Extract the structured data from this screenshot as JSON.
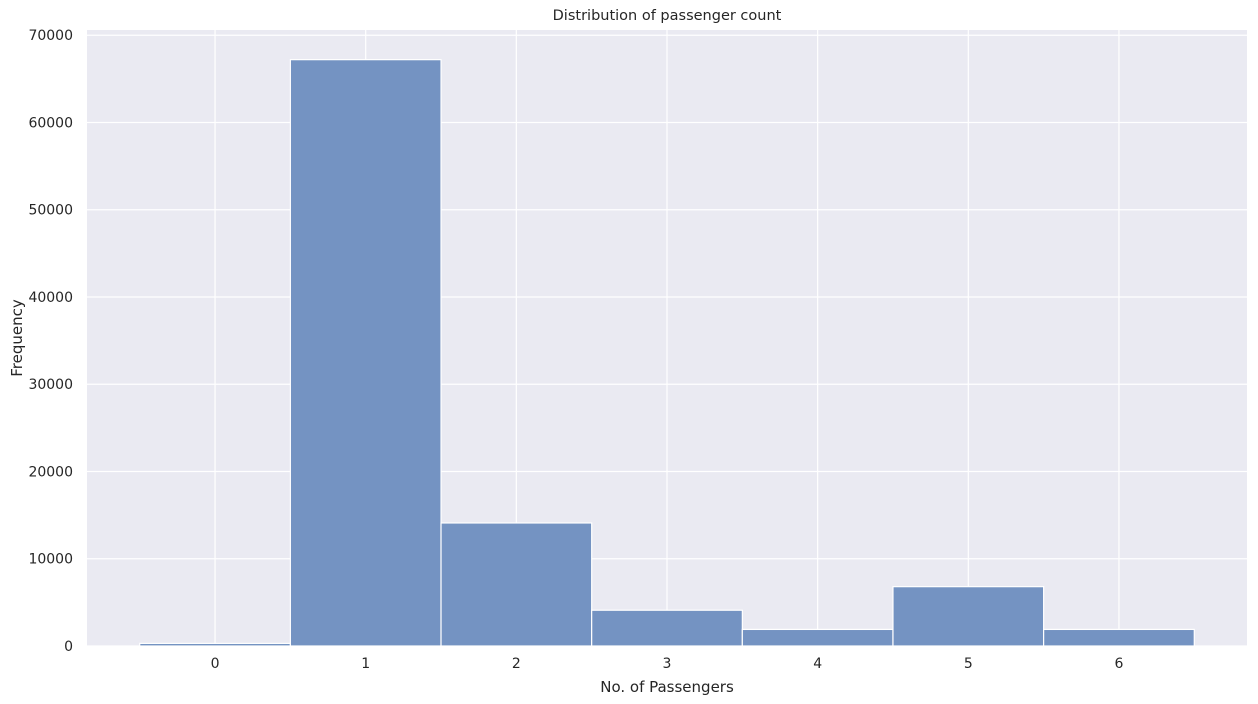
{
  "chart_data": {
    "type": "bar",
    "title": "Distribution of passenger count",
    "xlabel": "No. of Passengers",
    "ylabel": "Frequency",
    "categories": [
      "0",
      "1",
      "2",
      "3",
      "4",
      "5",
      "6"
    ],
    "x_values": [
      0,
      1,
      2,
      3,
      4,
      5,
      6
    ],
    "values": [
      300,
      67200,
      14100,
      4100,
      1900,
      6800,
      1900
    ],
    "xlim": [
      -0.85,
      6.85
    ],
    "ylim": [
      0,
      70600
    ],
    "x_ticks": [
      0,
      1,
      2,
      3,
      4,
      5,
      6
    ],
    "y_ticks": [
      0,
      10000,
      20000,
      30000,
      40000,
      50000,
      60000,
      70000
    ],
    "grid": true,
    "legend": "none",
    "colors": {
      "bar_fill": "#7493c2",
      "bar_edge": "#ffffff",
      "plot_background": "#eaeaf2",
      "grid": "#ffffff"
    }
  }
}
